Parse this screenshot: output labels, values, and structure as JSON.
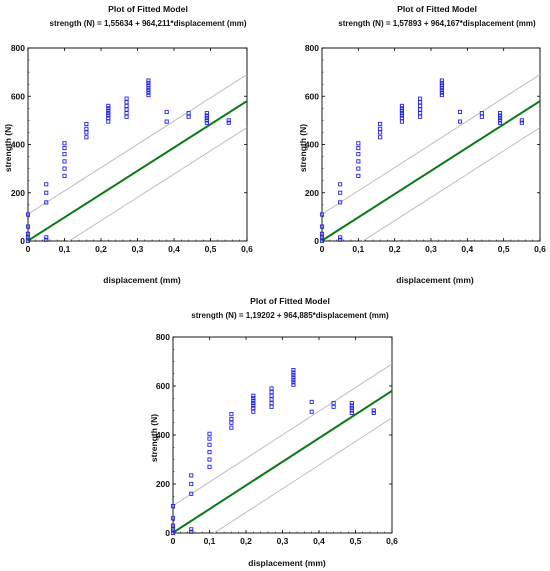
{
  "colors": {
    "points": "#2323e8",
    "fit_line": "#0b7a16",
    "limit_lines": "#bdbdbd",
    "axes": "#000000",
    "grid": "#e3e3e3"
  },
  "chart_data": [
    {
      "type": "scatter",
      "title": "Plot of Fitted Model",
      "subtitle": "strength (N) = 1,55634 + 964,211*displacement (mm)",
      "xlabel": "displacement (mm)",
      "ylabel": "strength (N)",
      "xlim": [
        0,
        0.6
      ],
      "ylim": [
        0,
        800
      ],
      "xticks": [
        "0",
        "0,1",
        "0,2",
        "0,3",
        "0,4",
        "0,5",
        "0,6"
      ],
      "yticks": [
        "0",
        "200",
        "400",
        "600",
        "800"
      ],
      "fit": {
        "intercept": 1.55634,
        "slope": 964.211
      },
      "limit_offset": 110,
      "points": [
        [
          0,
          0
        ],
        [
          0,
          15
        ],
        [
          0,
          30
        ],
        [
          0,
          60
        ],
        [
          0,
          110
        ],
        [
          0.05,
          5
        ],
        [
          0.05,
          15
        ],
        [
          0.05,
          160
        ],
        [
          0.05,
          200
        ],
        [
          0.05,
          235
        ],
        [
          0.1,
          270
        ],
        [
          0.1,
          300
        ],
        [
          0.1,
          330
        ],
        [
          0.1,
          360
        ],
        [
          0.1,
          385
        ],
        [
          0.1,
          405
        ],
        [
          0.16,
          430
        ],
        [
          0.16,
          450
        ],
        [
          0.16,
          465
        ],
        [
          0.16,
          485
        ],
        [
          0.22,
          495
        ],
        [
          0.22,
          510
        ],
        [
          0.22,
          520
        ],
        [
          0.22,
          530
        ],
        [
          0.22,
          540
        ],
        [
          0.22,
          550
        ],
        [
          0.22,
          560
        ],
        [
          0.27,
          515
        ],
        [
          0.27,
          530
        ],
        [
          0.27,
          545
        ],
        [
          0.27,
          560
        ],
        [
          0.27,
          575
        ],
        [
          0.27,
          590
        ],
        [
          0.33,
          605
        ],
        [
          0.33,
          615
        ],
        [
          0.33,
          625
        ],
        [
          0.33,
          635
        ],
        [
          0.33,
          645
        ],
        [
          0.33,
          655
        ],
        [
          0.33,
          665
        ],
        [
          0.38,
          495
        ],
        [
          0.38,
          535
        ],
        [
          0.44,
          515
        ],
        [
          0.44,
          530
        ],
        [
          0.49,
          490
        ],
        [
          0.49,
          500
        ],
        [
          0.49,
          510
        ],
        [
          0.49,
          520
        ],
        [
          0.49,
          530
        ],
        [
          0.55,
          490
        ],
        [
          0.55,
          500
        ]
      ]
    },
    {
      "type": "scatter",
      "title": "Plot of Fitted Model",
      "subtitle": "strength (N) = 1,57893 + 964,167*displacement (mm)",
      "xlabel": "displacement (mm)",
      "ylabel": "strength (N)",
      "xlim": [
        0,
        0.6
      ],
      "ylim": [
        0,
        800
      ],
      "xticks": [
        "0",
        "0,1",
        "0,2",
        "0,3",
        "0,4",
        "0,5",
        "0,6"
      ],
      "yticks": [
        "0",
        "200",
        "400",
        "600",
        "800"
      ],
      "fit": {
        "intercept": 1.57893,
        "slope": 964.167
      },
      "limit_offset": 110,
      "points": [
        [
          0,
          0
        ],
        [
          0,
          15
        ],
        [
          0,
          30
        ],
        [
          0,
          60
        ],
        [
          0,
          110
        ],
        [
          0.05,
          5
        ],
        [
          0.05,
          15
        ],
        [
          0.05,
          160
        ],
        [
          0.05,
          200
        ],
        [
          0.05,
          235
        ],
        [
          0.1,
          270
        ],
        [
          0.1,
          300
        ],
        [
          0.1,
          330
        ],
        [
          0.1,
          360
        ],
        [
          0.1,
          385
        ],
        [
          0.1,
          405
        ],
        [
          0.16,
          430
        ],
        [
          0.16,
          450
        ],
        [
          0.16,
          465
        ],
        [
          0.16,
          485
        ],
        [
          0.22,
          495
        ],
        [
          0.22,
          510
        ],
        [
          0.22,
          520
        ],
        [
          0.22,
          530
        ],
        [
          0.22,
          540
        ],
        [
          0.22,
          550
        ],
        [
          0.22,
          560
        ],
        [
          0.27,
          515
        ],
        [
          0.27,
          530
        ],
        [
          0.27,
          545
        ],
        [
          0.27,
          560
        ],
        [
          0.27,
          575
        ],
        [
          0.27,
          590
        ],
        [
          0.33,
          605
        ],
        [
          0.33,
          615
        ],
        [
          0.33,
          625
        ],
        [
          0.33,
          635
        ],
        [
          0.33,
          645
        ],
        [
          0.33,
          655
        ],
        [
          0.33,
          665
        ],
        [
          0.38,
          495
        ],
        [
          0.38,
          535
        ],
        [
          0.44,
          515
        ],
        [
          0.44,
          530
        ],
        [
          0.49,
          490
        ],
        [
          0.49,
          500
        ],
        [
          0.49,
          510
        ],
        [
          0.49,
          520
        ],
        [
          0.49,
          530
        ],
        [
          0.55,
          490
        ],
        [
          0.55,
          500
        ]
      ]
    },
    {
      "type": "scatter",
      "title": "Plot of Fitted Model",
      "subtitle": "strength (N) = 1,19202 + 964,885*displacement (mm)",
      "xlabel": "displacement (mm)",
      "ylabel": "strength (N)",
      "xlim": [
        0,
        0.6
      ],
      "ylim": [
        0,
        800
      ],
      "xticks": [
        "0",
        "0,1",
        "0,2",
        "0,3",
        "0,4",
        "0,5",
        "0,6"
      ],
      "yticks": [
        "0",
        "200",
        "400",
        "600",
        "800"
      ],
      "fit": {
        "intercept": 1.19202,
        "slope": 964.885
      },
      "limit_offset": 110,
      "points": [
        [
          0,
          0
        ],
        [
          0,
          15
        ],
        [
          0,
          30
        ],
        [
          0,
          60
        ],
        [
          0,
          110
        ],
        [
          0.05,
          5
        ],
        [
          0.05,
          15
        ],
        [
          0.05,
          160
        ],
        [
          0.05,
          200
        ],
        [
          0.05,
          235
        ],
        [
          0.1,
          270
        ],
        [
          0.1,
          300
        ],
        [
          0.1,
          330
        ],
        [
          0.1,
          360
        ],
        [
          0.1,
          385
        ],
        [
          0.1,
          405
        ],
        [
          0.16,
          430
        ],
        [
          0.16,
          450
        ],
        [
          0.16,
          465
        ],
        [
          0.16,
          485
        ],
        [
          0.22,
          495
        ],
        [
          0.22,
          510
        ],
        [
          0.22,
          520
        ],
        [
          0.22,
          530
        ],
        [
          0.22,
          540
        ],
        [
          0.22,
          550
        ],
        [
          0.22,
          560
        ],
        [
          0.27,
          515
        ],
        [
          0.27,
          530
        ],
        [
          0.27,
          545
        ],
        [
          0.27,
          560
        ],
        [
          0.27,
          575
        ],
        [
          0.27,
          590
        ],
        [
          0.33,
          605
        ],
        [
          0.33,
          615
        ],
        [
          0.33,
          625
        ],
        [
          0.33,
          635
        ],
        [
          0.33,
          645
        ],
        [
          0.33,
          655
        ],
        [
          0.33,
          665
        ],
        [
          0.38,
          495
        ],
        [
          0.38,
          535
        ],
        [
          0.44,
          515
        ],
        [
          0.44,
          530
        ],
        [
          0.49,
          490
        ],
        [
          0.49,
          500
        ],
        [
          0.49,
          510
        ],
        [
          0.49,
          520
        ],
        [
          0.49,
          530
        ],
        [
          0.55,
          490
        ],
        [
          0.55,
          500
        ]
      ]
    }
  ]
}
